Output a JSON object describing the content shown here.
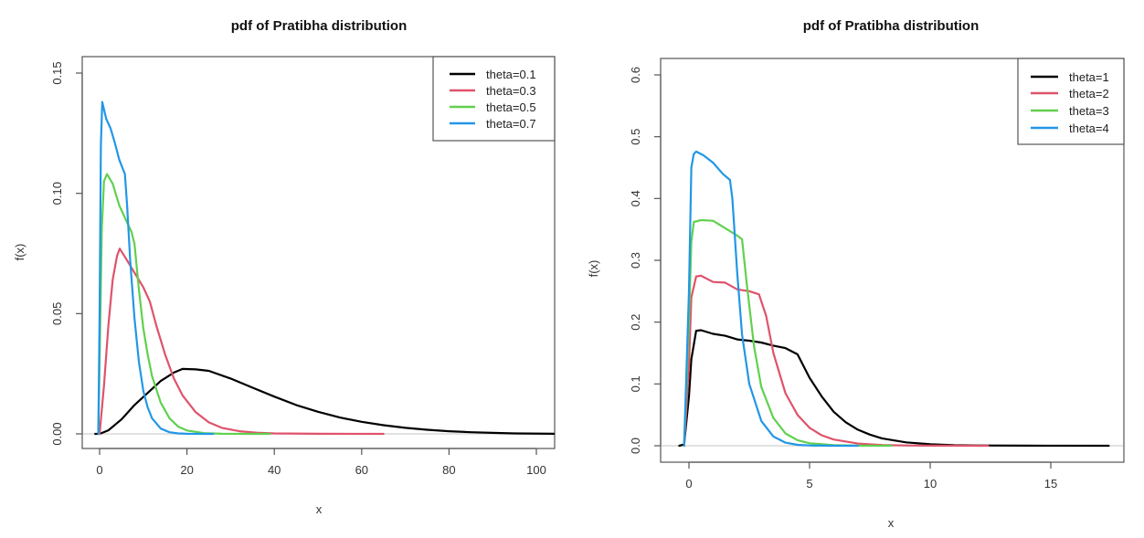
{
  "chart_data": [
    {
      "type": "line",
      "title": "pdf of Pratibha distribution",
      "xlabel": "x",
      "ylabel": "f(x)",
      "xlim": [
        -4,
        104
      ],
      "ylim": [
        -0.006,
        0.156
      ],
      "xticks": [
        0,
        20,
        40,
        60,
        80,
        100
      ],
      "xtick_labels": [
        "0",
        "20",
        "40",
        "60",
        "80",
        "100"
      ],
      "yticks": [
        0.0,
        0.05,
        0.1,
        0.15
      ],
      "ytick_labels": [
        "0.00",
        "0.05",
        "0.10",
        "0.15"
      ],
      "grid": false,
      "zero_reference_line": true,
      "legend_position": "top-right",
      "series": [
        {
          "name": "theta=0.1",
          "color": "#000000",
          "x": [
            -1,
            0,
            2,
            5,
            8,
            11,
            14,
            17,
            19,
            22,
            25,
            30,
            35,
            40,
            45,
            50,
            55,
            60,
            65,
            70,
            75,
            80,
            85,
            90,
            95,
            104
          ],
          "y": [
            0,
            0,
            0.0015,
            0.006,
            0.012,
            0.017,
            0.022,
            0.0255,
            0.027,
            0.0268,
            0.0262,
            0.023,
            0.0192,
            0.0155,
            0.012,
            0.0092,
            0.0068,
            0.005,
            0.0036,
            0.0025,
            0.0017,
            0.0011,
            0.0007,
            0.0004,
            0.0002,
            5e-05
          ]
        },
        {
          "name": "theta=0.3",
          "color": "#DF536B",
          "x": [
            0,
            1,
            2,
            3,
            4,
            4.6,
            6,
            8,
            10,
            11.5,
            13,
            15,
            17,
            19,
            22,
            25,
            28,
            32,
            36,
            40,
            50,
            65
          ],
          "y": [
            0,
            0.02,
            0.045,
            0.064,
            0.074,
            0.077,
            0.073,
            0.067,
            0.061,
            0.055,
            0.045,
            0.033,
            0.023,
            0.016,
            0.009,
            0.0048,
            0.0025,
            0.0011,
            0.0005,
            0.0002,
            2e-05,
            0
          ]
        },
        {
          "name": "theta=0.5",
          "color": "#61D04F",
          "x": [
            -0.3,
            0,
            0.5,
            1.0,
            1.7,
            3,
            4.5,
            6,
            7.3,
            8,
            9,
            10,
            11,
            12,
            14,
            16,
            18,
            20,
            24,
            28,
            33,
            39
          ],
          "y": [
            0,
            0.03,
            0.085,
            0.105,
            0.108,
            0.104,
            0.095,
            0.089,
            0.084,
            0.079,
            0.06,
            0.044,
            0.033,
            0.024,
            0.013,
            0.0065,
            0.003,
            0.0014,
            0.0003,
            5e-05,
            0,
            0
          ]
        },
        {
          "name": "theta=0.7",
          "color": "#2297E6",
          "x": [
            -0.3,
            0,
            0.3,
            0.6,
            1.5,
            2.5,
            3.5,
            4.5,
            5.8,
            6.3,
            7,
            8,
            9,
            10,
            11,
            12,
            14,
            16,
            18,
            20,
            24,
            26
          ],
          "y": [
            0,
            0.05,
            0.12,
            0.138,
            0.131,
            0.127,
            0.121,
            0.114,
            0.108,
            0.095,
            0.072,
            0.048,
            0.03,
            0.018,
            0.011,
            0.0065,
            0.0022,
            0.0007,
            0.0002,
            5e-05,
            0,
            0
          ]
        }
      ]
    },
    {
      "type": "line",
      "title": "pdf of Pratibha distribution",
      "xlabel": "x",
      "ylabel": "f(x)",
      "xlim": [
        -1.2,
        18.3
      ],
      "ylim": [
        -0.025,
        0.625
      ],
      "xticks": [
        0,
        5,
        10,
        15
      ],
      "xtick_labels": [
        "0",
        "5",
        "10",
        "15"
      ],
      "yticks": [
        0.0,
        0.1,
        0.2,
        0.3,
        0.4,
        0.5,
        0.6
      ],
      "ytick_labels": [
        "0.0",
        "0.1",
        "0.2",
        "0.3",
        "0.4",
        "0.5",
        "0.6"
      ],
      "grid": false,
      "zero_reference_line": true,
      "legend_position": "top-right",
      "series": [
        {
          "name": "theta=1",
          "color": "#000000",
          "x": [
            -0.4,
            -0.2,
            0,
            0.1,
            0.3,
            0.5,
            1.0,
            1.5,
            2.0,
            2.5,
            3.0,
            3.5,
            4.0,
            4.5,
            5.0,
            5.5,
            6.0,
            6.5,
            7.0,
            7.5,
            8.0,
            9.0,
            10.0,
            11.0,
            12.0,
            14.0,
            17.4
          ],
          "y": [
            0,
            0.002,
            0.08,
            0.14,
            0.186,
            0.187,
            0.181,
            0.178,
            0.172,
            0.17,
            0.167,
            0.162,
            0.158,
            0.148,
            0.11,
            0.08,
            0.055,
            0.038,
            0.026,
            0.018,
            0.012,
            0.0055,
            0.0025,
            0.001,
            0.0004,
            0.0001,
            0
          ]
        },
        {
          "name": "theta=2",
          "color": "#DF536B",
          "x": [
            -0.2,
            0,
            0.1,
            0.3,
            0.5,
            1.0,
            1.5,
            2.0,
            2.5,
            2.9,
            3.2,
            3.5,
            4.0,
            4.5,
            5.0,
            5.5,
            6.0,
            7.0,
            8.0,
            9.0,
            10.0,
            12.4
          ],
          "y": [
            0,
            0.13,
            0.24,
            0.274,
            0.275,
            0.265,
            0.264,
            0.253,
            0.25,
            0.245,
            0.21,
            0.15,
            0.085,
            0.05,
            0.029,
            0.017,
            0.01,
            0.0035,
            0.0012,
            0.0004,
            0.0001,
            0
          ]
        },
        {
          "name": "theta=3",
          "color": "#61D04F",
          "x": [
            -0.2,
            0,
            0.1,
            0.2,
            0.5,
            1.0,
            1.5,
            2.0,
            2.2,
            2.4,
            2.7,
            3.0,
            3.5,
            4.0,
            4.5,
            5.0,
            6.0,
            7.0,
            8.4
          ],
          "y": [
            0,
            0.2,
            0.33,
            0.362,
            0.365,
            0.364,
            0.352,
            0.34,
            0.334,
            0.26,
            0.16,
            0.095,
            0.045,
            0.02,
            0.009,
            0.004,
            0.001,
            0.0002,
            0
          ]
        },
        {
          "name": "theta=4",
          "color": "#2297E6",
          "x": [
            -0.2,
            0,
            0.1,
            0.2,
            0.3,
            0.6,
            1.0,
            1.4,
            1.7,
            1.8,
            2.0,
            2.2,
            2.5,
            3.0,
            3.5,
            4.0,
            4.5,
            5.0,
            6.0,
            7.0
          ],
          "y": [
            0,
            0.25,
            0.45,
            0.472,
            0.476,
            0.47,
            0.458,
            0.44,
            0.43,
            0.4,
            0.28,
            0.18,
            0.1,
            0.04,
            0.015,
            0.005,
            0.0015,
            0.0004,
            5e-05,
            0
          ]
        }
      ]
    }
  ]
}
